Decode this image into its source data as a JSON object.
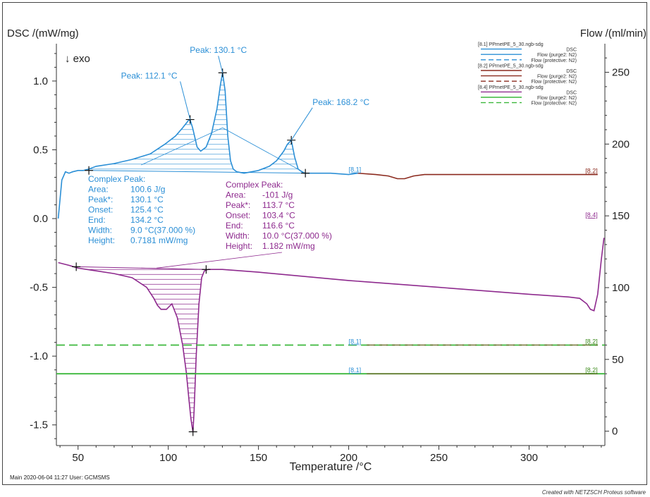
{
  "chart_data": {
    "type": "line",
    "title": "",
    "xlabel": "Temperature /°C",
    "ylabel_left": "DSC /(mW/mg)",
    "ylabel_right": "Flow /(ml/min)",
    "exo_label": "↓ exo",
    "xlim": [
      38,
      342
    ],
    "ylim_left": [
      -1.65,
      1.22
    ],
    "ylim_right": [
      -10,
      265
    ],
    "x_ticks": [
      50,
      100,
      150,
      200,
      250,
      300
    ],
    "y_ticks_left": [
      1.0,
      0.5,
      0.0,
      -0.5,
      -1.0,
      -1.5
    ],
    "y_tick_labels_left": [
      "1.0",
      "0.5",
      "0.0",
      "-0.5",
      "-1.0",
      "-1.5"
    ],
    "y_ticks_right": [
      250,
      200,
      150,
      100,
      50,
      0
    ],
    "grid": false,
    "legend_position": "top-right",
    "legend": [
      {
        "label": "[8.1]  PPmetPE_5_30.ngb-sdg",
        "header": true
      },
      {
        "label": "DSC",
        "color": "#2b8fd6",
        "dash": "solid"
      },
      {
        "label": "Flow (purge2: N2)",
        "color": "#2b8fd6",
        "dash": "solid"
      },
      {
        "label": "Flow (protective: N2)",
        "color": "#2b8fd6",
        "dash": "dashed"
      },
      {
        "label": "[8.2]  PPmetPE_5_30.ngb-sdg",
        "header": true
      },
      {
        "label": "DSC",
        "color": "#8b2a1e",
        "dash": "solid"
      },
      {
        "label": "Flow (purge2: N2)",
        "color": "#8b2a1e",
        "dash": "solid"
      },
      {
        "label": "Flow (protective: N2)",
        "color": "#8b2a1e",
        "dash": "dashed"
      },
      {
        "label": "[8.4]  PPmetPE_5_30.ngb-sdg",
        "header": true
      },
      {
        "label": "DSC",
        "color": "#8e2a8e",
        "dash": "solid"
      },
      {
        "label": "Flow (purge2: N2)",
        "color": "#3cb83c",
        "dash": "solid"
      },
      {
        "label": "Flow (protective: N2)",
        "color": "#3cb83c",
        "dash": "dashed"
      }
    ],
    "series": [
      {
        "name": "[8.1] DSC",
        "color": "#2b8fd6",
        "axis": "left",
        "x": [
          39,
          41,
          43,
          45,
          47,
          50,
          53,
          56,
          60,
          70,
          80,
          90,
          98,
          104,
          108,
          111,
          112.1,
          113.5,
          116,
          118,
          121,
          124,
          127,
          129,
          130.1,
          131.5,
          133,
          134.5,
          136,
          138,
          142,
          150,
          156,
          160,
          164,
          166,
          168.2,
          170,
          172,
          175,
          180,
          190,
          200,
          205
        ],
        "y": [
          0.0,
          0.28,
          0.34,
          0.33,
          0.34,
          0.35,
          0.35,
          0.36,
          0.38,
          0.4,
          0.43,
          0.47,
          0.54,
          0.6,
          0.66,
          0.71,
          0.72,
          0.66,
          0.52,
          0.49,
          0.52,
          0.62,
          0.8,
          0.98,
          1.06,
          0.93,
          0.6,
          0.42,
          0.36,
          0.34,
          0.33,
          0.35,
          0.38,
          0.42,
          0.49,
          0.54,
          0.57,
          0.45,
          0.36,
          0.33,
          0.33,
          0.33,
          0.32,
          0.33
        ]
      },
      {
        "name": "[8.2] DSC",
        "color": "#8b2a1e",
        "axis": "left",
        "x": [
          205,
          215,
          222,
          227,
          231,
          236,
          242,
          260,
          300,
          338
        ],
        "y": [
          0.33,
          0.32,
          0.31,
          0.29,
          0.29,
          0.31,
          0.32,
          0.32,
          0.32,
          0.32
        ]
      },
      {
        "name": "[8.4] DSC",
        "color": "#8e2a8e",
        "axis": "left",
        "x": [
          39,
          45,
          50,
          60,
          70,
          80,
          88,
          92,
          94,
          96,
          99,
          102,
          105,
          108,
          110,
          111.5,
          112.5,
          113.3,
          113.7,
          114.3,
          115.5,
          117,
          118.5,
          120,
          122,
          130,
          150,
          200,
          250,
          300,
          322,
          328,
          332,
          334,
          336,
          338,
          340,
          341.5
        ],
        "y": [
          -0.32,
          -0.34,
          -0.36,
          -0.38,
          -0.4,
          -0.43,
          -0.5,
          -0.58,
          -0.63,
          -0.66,
          -0.66,
          -0.62,
          -0.72,
          -0.92,
          -1.12,
          -1.32,
          -1.45,
          -1.52,
          -1.55,
          -1.4,
          -1.0,
          -0.62,
          -0.43,
          -0.38,
          -0.37,
          -0.37,
          -0.39,
          -0.45,
          -0.5,
          -0.55,
          -0.57,
          -0.58,
          -0.62,
          -0.66,
          -0.67,
          -0.55,
          -0.3,
          -0.14
        ]
      },
      {
        "name": "Flow (protective: N2)",
        "color": "#3cb83c",
        "axis": "right",
        "dash": "dashed",
        "x": [
          38,
          342
        ],
        "y": [
          60,
          60
        ]
      },
      {
        "name": "Flow (purge2: N2)",
        "color": "#3cb83c",
        "axis": "right",
        "x": [
          38,
          342
        ],
        "y": [
          40,
          40
        ]
      }
    ],
    "segment_labels": [
      {
        "text": "[8.1]",
        "color": "#2b8fd6",
        "x": 200,
        "y": 0.33,
        "axis": "left"
      },
      {
        "text": "[8.2]",
        "color": "#8b2a1e",
        "x": 338,
        "y": 0.32,
        "axis": "left"
      },
      {
        "text": "[8.4]",
        "color": "#8e2a8e",
        "x": 338,
        "y": 0.0,
        "axis": "left"
      },
      {
        "text": "[8.1]",
        "color": "#2b8fd6",
        "x": 200,
        "y": 60,
        "axis": "right"
      },
      {
        "text": "[8.2]",
        "color": "#3a8a1a",
        "x": 338,
        "y": 60,
        "axis": "right"
      },
      {
        "text": "[8.1]",
        "color": "#2b8fd6",
        "x": 200,
        "y": 40,
        "axis": "right"
      },
      {
        "text": "[8.2]",
        "color": "#3a8a1a",
        "x": 338,
        "y": 40,
        "axis": "right"
      }
    ],
    "peak_annotations": [
      {
        "text": "Peak: 112.1 °C",
        "x": 112.1,
        "y": 0.72,
        "color": "#2b8fd6"
      },
      {
        "text": "Peak: 130.1 °C",
        "x": 130.1,
        "y": 1.06,
        "color": "#2b8fd6"
      },
      {
        "text": "Peak: 168.2 °C",
        "x": 168.2,
        "y": 0.57,
        "color": "#2b8fd6"
      }
    ],
    "complex_peak_blue": {
      "color": "#2b8fd6",
      "lines": [
        [
          "Complex Peak:",
          ""
        ],
        [
          "Area:",
          "100.6 J/g"
        ],
        [
          "Peak*:",
          "130.1 °C"
        ],
        [
          "Onset:",
          "125.4 °C"
        ],
        [
          "End:",
          "134.2 °C"
        ],
        [
          "Width:",
          "9.0 °C(37.000 %)"
        ],
        [
          "Height:",
          "0.7181 mW/mg"
        ]
      ],
      "baseline_x": [
        56,
        176
      ],
      "baseline_y": [
        0.35,
        0.33
      ]
    },
    "complex_peak_purple": {
      "color": "#8e2a8e",
      "lines": [
        [
          "Complex Peak:",
          ""
        ],
        [
          "Area:",
          "-101 J/g"
        ],
        [
          "Peak*:",
          "113.7 °C"
        ],
        [
          "Onset:",
          "103.4 °C"
        ],
        [
          "End:",
          "116.6 °C"
        ],
        [
          "Width:",
          "10.0 °C(37.000 %)"
        ],
        [
          "Height:",
          "1.182 mW/mg"
        ]
      ],
      "baseline_x": [
        49,
        121
      ],
      "baseline_y": [
        -0.35,
        -0.37
      ]
    }
  },
  "footer": {
    "left": "Main    2020-06-04 11:27    User: GCMSMS",
    "right": "Created with NETZSCH Proteus software"
  }
}
